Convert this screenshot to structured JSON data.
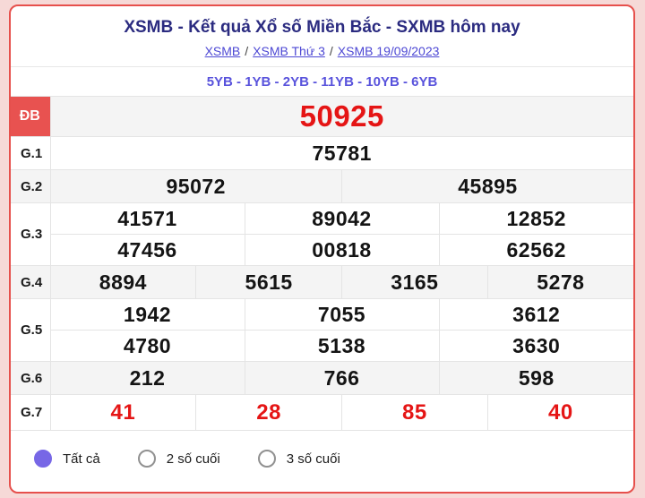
{
  "header": {
    "title": "XSMB - Kết quả Xổ số Miền Bắc - SXMB hôm nay",
    "breadcrumb": [
      {
        "label": "XSMB"
      },
      {
        "label": "XSMB Thứ 3"
      },
      {
        "label": "XSMB 19/09/2023"
      }
    ],
    "breadcrumb_separator": "/",
    "ticket_codes": "5YB - 1YB - 2YB - 11YB - 10YB - 6YB"
  },
  "results_table": {
    "rows": [
      {
        "label": "ĐB",
        "highlight": true,
        "values": [
          [
            "50925"
          ]
        ]
      },
      {
        "label": "G.1",
        "values": [
          [
            "75781"
          ]
        ]
      },
      {
        "label": "G.2",
        "values": [
          [
            "95072",
            "45895"
          ]
        ]
      },
      {
        "label": "G.3",
        "values": [
          [
            "41571",
            "89042",
            "12852"
          ],
          [
            "47456",
            "00818",
            "62562"
          ]
        ]
      },
      {
        "label": "G.4",
        "values": [
          [
            "8894",
            "5615",
            "3165",
            "5278"
          ]
        ]
      },
      {
        "label": "G.5",
        "values": [
          [
            "1942",
            "7055",
            "3612"
          ],
          [
            "4780",
            "5138",
            "3630"
          ]
        ]
      },
      {
        "label": "G.6",
        "values": [
          [
            "212",
            "766",
            "598"
          ]
        ]
      },
      {
        "label": "G.7",
        "red": true,
        "values": [
          [
            "41",
            "28",
            "85",
            "40"
          ]
        ]
      }
    ]
  },
  "filters": {
    "options": [
      {
        "label": "Tất cả",
        "selected": true
      },
      {
        "label": "2 số cuối",
        "selected": false
      },
      {
        "label": "3 số cuối",
        "selected": false
      }
    ]
  },
  "colors": {
    "card_border": "#e6504c",
    "title": "#2b2b80",
    "link": "#4d48d4",
    "ticket_codes": "#5953dc",
    "prize_highlight_bg": "#e85250",
    "special_number": "#e51515",
    "radio_selected": "#7767e6"
  }
}
